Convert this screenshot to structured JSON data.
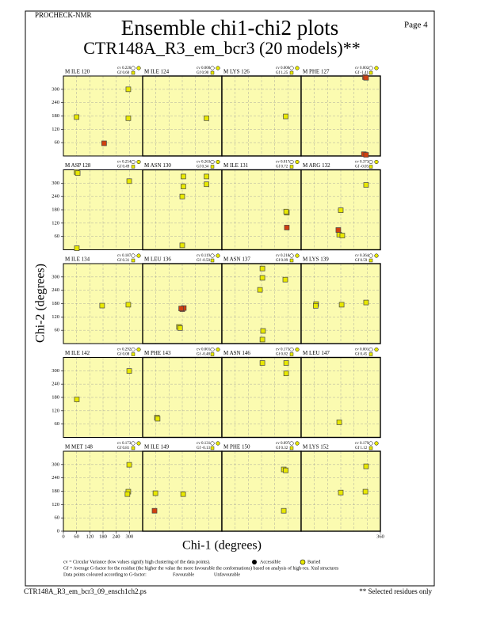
{
  "page": {
    "program": "PROCHECK-NMR",
    "page_label": "Page  4",
    "title": "Ensemble chi1-chi2 plots",
    "subtitle": "CTR148A_R3_em_bcr3 (20 models)**",
    "filename": "CTR148A_R3_em_bcr3_09_ensch1ch2.ps",
    "note": "** Selected residues only",
    "legend": {
      "cv": "cv = Circular Variance (low values signify high clustering of the data points).",
      "accessible": "Accessible",
      "buried": "Buried",
      "gf": "Gf = Average G-factor for the residue (the higher the value the more favourable the conformations) based on analysis of high-res. Xtal structures",
      "coloured": "Data points coloured according to G-factor:",
      "favourable": "Favourable",
      "unfavourable": "Unfavourable",
      "favourable_color": "#e8e800",
      "unfavourable_color": "#d04010"
    }
  },
  "axes": {
    "xlabel": "Chi-1 (degrees)",
    "ylabel": "Chi-2 (degrees)",
    "xlim": [
      0,
      360
    ],
    "ylim": [
      0,
      360
    ],
    "xticks": [
      0,
      60,
      120,
      180,
      240,
      300,
      360
    ],
    "yticks": [
      0,
      60,
      120,
      180,
      240,
      300
    ],
    "grid": true,
    "background": "#fbfbb0"
  },
  "chart_data": [
    {
      "type": "scatter",
      "title": "M ILE 120",
      "cv": "cv 0.226",
      "gf": "Gf 0.60",
      "series": [
        {
          "color": "#e8e800",
          "x": [
            60,
            295,
            295
          ],
          "values": [
            175,
            170,
            300
          ]
        },
        {
          "color": "#d04010",
          "x": [
            185
          ],
          "values": [
            57
          ]
        }
      ]
    },
    {
      "type": "scatter",
      "title": "M ILE 124",
      "cv": "cv 0.000",
      "gf": "Gf 0.90",
      "series": [
        {
          "color": "#e8e800",
          "x": [
            290
          ],
          "values": [
            170
          ]
        }
      ]
    },
    {
      "type": "scatter",
      "title": "M LYS 126",
      "cv": "cv 0.000",
      "gf": "Gf 1.25",
      "series": [
        {
          "color": "#e8e800",
          "x": [
            290
          ],
          "values": [
            178
          ]
        }
      ]
    },
    {
      "type": "scatter",
      "title": "M PHE 127",
      "cv": "cv 0.002",
      "gf": "Gf -1.41",
      "series": [
        {
          "color": "#d04010",
          "x": [
            290,
            295,
            285,
            295
          ],
          "values": [
            355,
            352,
            8,
            5
          ]
        }
      ]
    },
    {
      "type": "scatter",
      "title": "M ASP 128",
      "cv": "cv 0.254",
      "gf": "Gf 0.49",
      "series": [
        {
          "color": "#e8e800",
          "x": [
            60,
            65,
            299,
            61
          ],
          "values": [
            350,
            345,
            309,
            7
          ]
        }
      ]
    },
    {
      "type": "scatter",
      "title": "M ASN 130",
      "cv": "cv 0.263",
      "gf": "Gf 0.34",
      "series": [
        {
          "color": "#e8e800",
          "x": [
            185,
            185,
            180,
            290,
            290,
            180
          ],
          "values": [
            330,
            285,
            240,
            330,
            295,
            20
          ]
        }
      ]
    },
    {
      "type": "scatter",
      "title": "M ILE 131",
      "cv": "cv 0.017",
      "gf": "Gf 0.72",
      "series": [
        {
          "color": "#e8e800",
          "x": [
            295,
            292
          ],
          "values": [
            167,
            172
          ]
        },
        {
          "color": "#d04010",
          "x": [
            295
          ],
          "values": [
            100
          ]
        }
      ]
    },
    {
      "type": "scatter",
      "title": "M ARG 132",
      "cv": "cv 0.373",
      "gf": "Gf -0.05",
      "series": [
        {
          "color": "#e8e800",
          "x": [
            180,
            173,
            187,
            295
          ],
          "values": [
            178,
            68,
            64,
            292
          ]
        },
        {
          "color": "#d04010",
          "x": [
            169
          ],
          "values": [
            89
          ]
        }
      ]
    },
    {
      "type": "scatter",
      "title": "M ILE 134",
      "cv": "cv 0.187",
      "gf": "Gf 0.31",
      "series": [
        {
          "color": "#e8e800",
          "x": [
            176,
            295
          ],
          "values": [
            171,
            175
          ]
        }
      ]
    },
    {
      "type": "scatter",
      "title": "M LEU 136",
      "cv": "cv 0.119",
      "gf": "Gf -0.50",
      "series": [
        {
          "color": "#e8e800",
          "x": [
            165,
            170
          ],
          "values": [
            75,
            70
          ]
        },
        {
          "color": "#d04010",
          "x": [
            180,
            187,
            175
          ],
          "values": [
            155,
            160,
            158
          ]
        }
      ]
    },
    {
      "type": "scatter",
      "title": "M ASN 137",
      "cv": "cv 0.218",
      "gf": "Gf 0.09",
      "series": [
        {
          "color": "#e8e800",
          "x": [
            184,
            184,
            173,
            288,
            187,
            184
          ],
          "values": [
            338,
            296,
            242,
            288,
            57,
            18
          ]
        }
      ]
    },
    {
      "type": "scatter",
      "title": "M LYS 139",
      "cv": "cv 0.364",
      "gf": "Gf 0.59",
      "series": [
        {
          "color": "#e8e800",
          "x": [
            68,
            66,
            184,
            295
          ],
          "values": [
            178,
            170,
            175,
            185
          ]
        }
      ]
    },
    {
      "type": "scatter",
      "title": "M ILE 142",
      "cv": "cv 0.292",
      "gf": "Gf 0.08",
      "series": [
        {
          "color": "#e8e800",
          "x": [
            61,
            299
          ],
          "values": [
            171,
            299
          ]
        }
      ]
    },
    {
      "type": "scatter",
      "title": "M PHE 143",
      "cv": "cv 0.001",
      "gf": "Gf -0.48",
      "series": [
        {
          "color": "#e8e800",
          "x": [
            65,
            68
          ],
          "values": [
            89,
            84
          ]
        }
      ]
    },
    {
      "type": "scatter",
      "title": "M ASN 146",
      "cv": "cv 0.173",
      "gf": "Gf 0.82",
      "series": [
        {
          "color": "#e8e800",
          "x": [
            184,
            292,
            292
          ],
          "values": [
            335,
            335,
            288
          ]
        }
      ]
    },
    {
      "type": "scatter",
      "title": "M LEU 147",
      "cv": "cv 0.001",
      "gf": "Gf 0.45",
      "series": [
        {
          "color": "#e8e800",
          "x": [
            173
          ],
          "values": [
            68
          ]
        }
      ]
    },
    {
      "type": "scatter",
      "title": "M MET 148",
      "cv": "cv 0.173",
      "gf": "Gf 0.81",
      "series": [
        {
          "color": "#e8e800",
          "x": [
            299,
            295,
            291
          ],
          "values": [
            299,
            178,
            167
          ]
        }
      ]
    },
    {
      "type": "scatter",
      "title": "M ILE 149",
      "cv": "cv 0.131",
      "gf": "Gf -0.13",
      "series": [
        {
          "color": "#e8e800",
          "x": [
            58,
            184
          ],
          "values": [
            171,
            167
          ]
        },
        {
          "color": "#d04010",
          "x": [
            54
          ],
          "values": [
            92
          ]
        }
      ]
    },
    {
      "type": "scatter",
      "title": "M PHE 150",
      "cv": "cv 0.097",
      "gf": "Gf 0.32",
      "series": [
        {
          "color": "#e8e800",
          "x": [
            281,
            290,
            281
          ],
          "values": [
            278,
            274,
            92
          ]
        }
      ]
    },
    {
      "type": "scatter",
      "title": "M LYS 152",
      "cv": "cv 0.179",
      "gf": "Gf 1.12",
      "series": [
        {
          "color": "#e8e800",
          "x": [
            180,
            295,
            292
          ],
          "values": [
            174,
            292,
            178
          ]
        }
      ]
    }
  ]
}
